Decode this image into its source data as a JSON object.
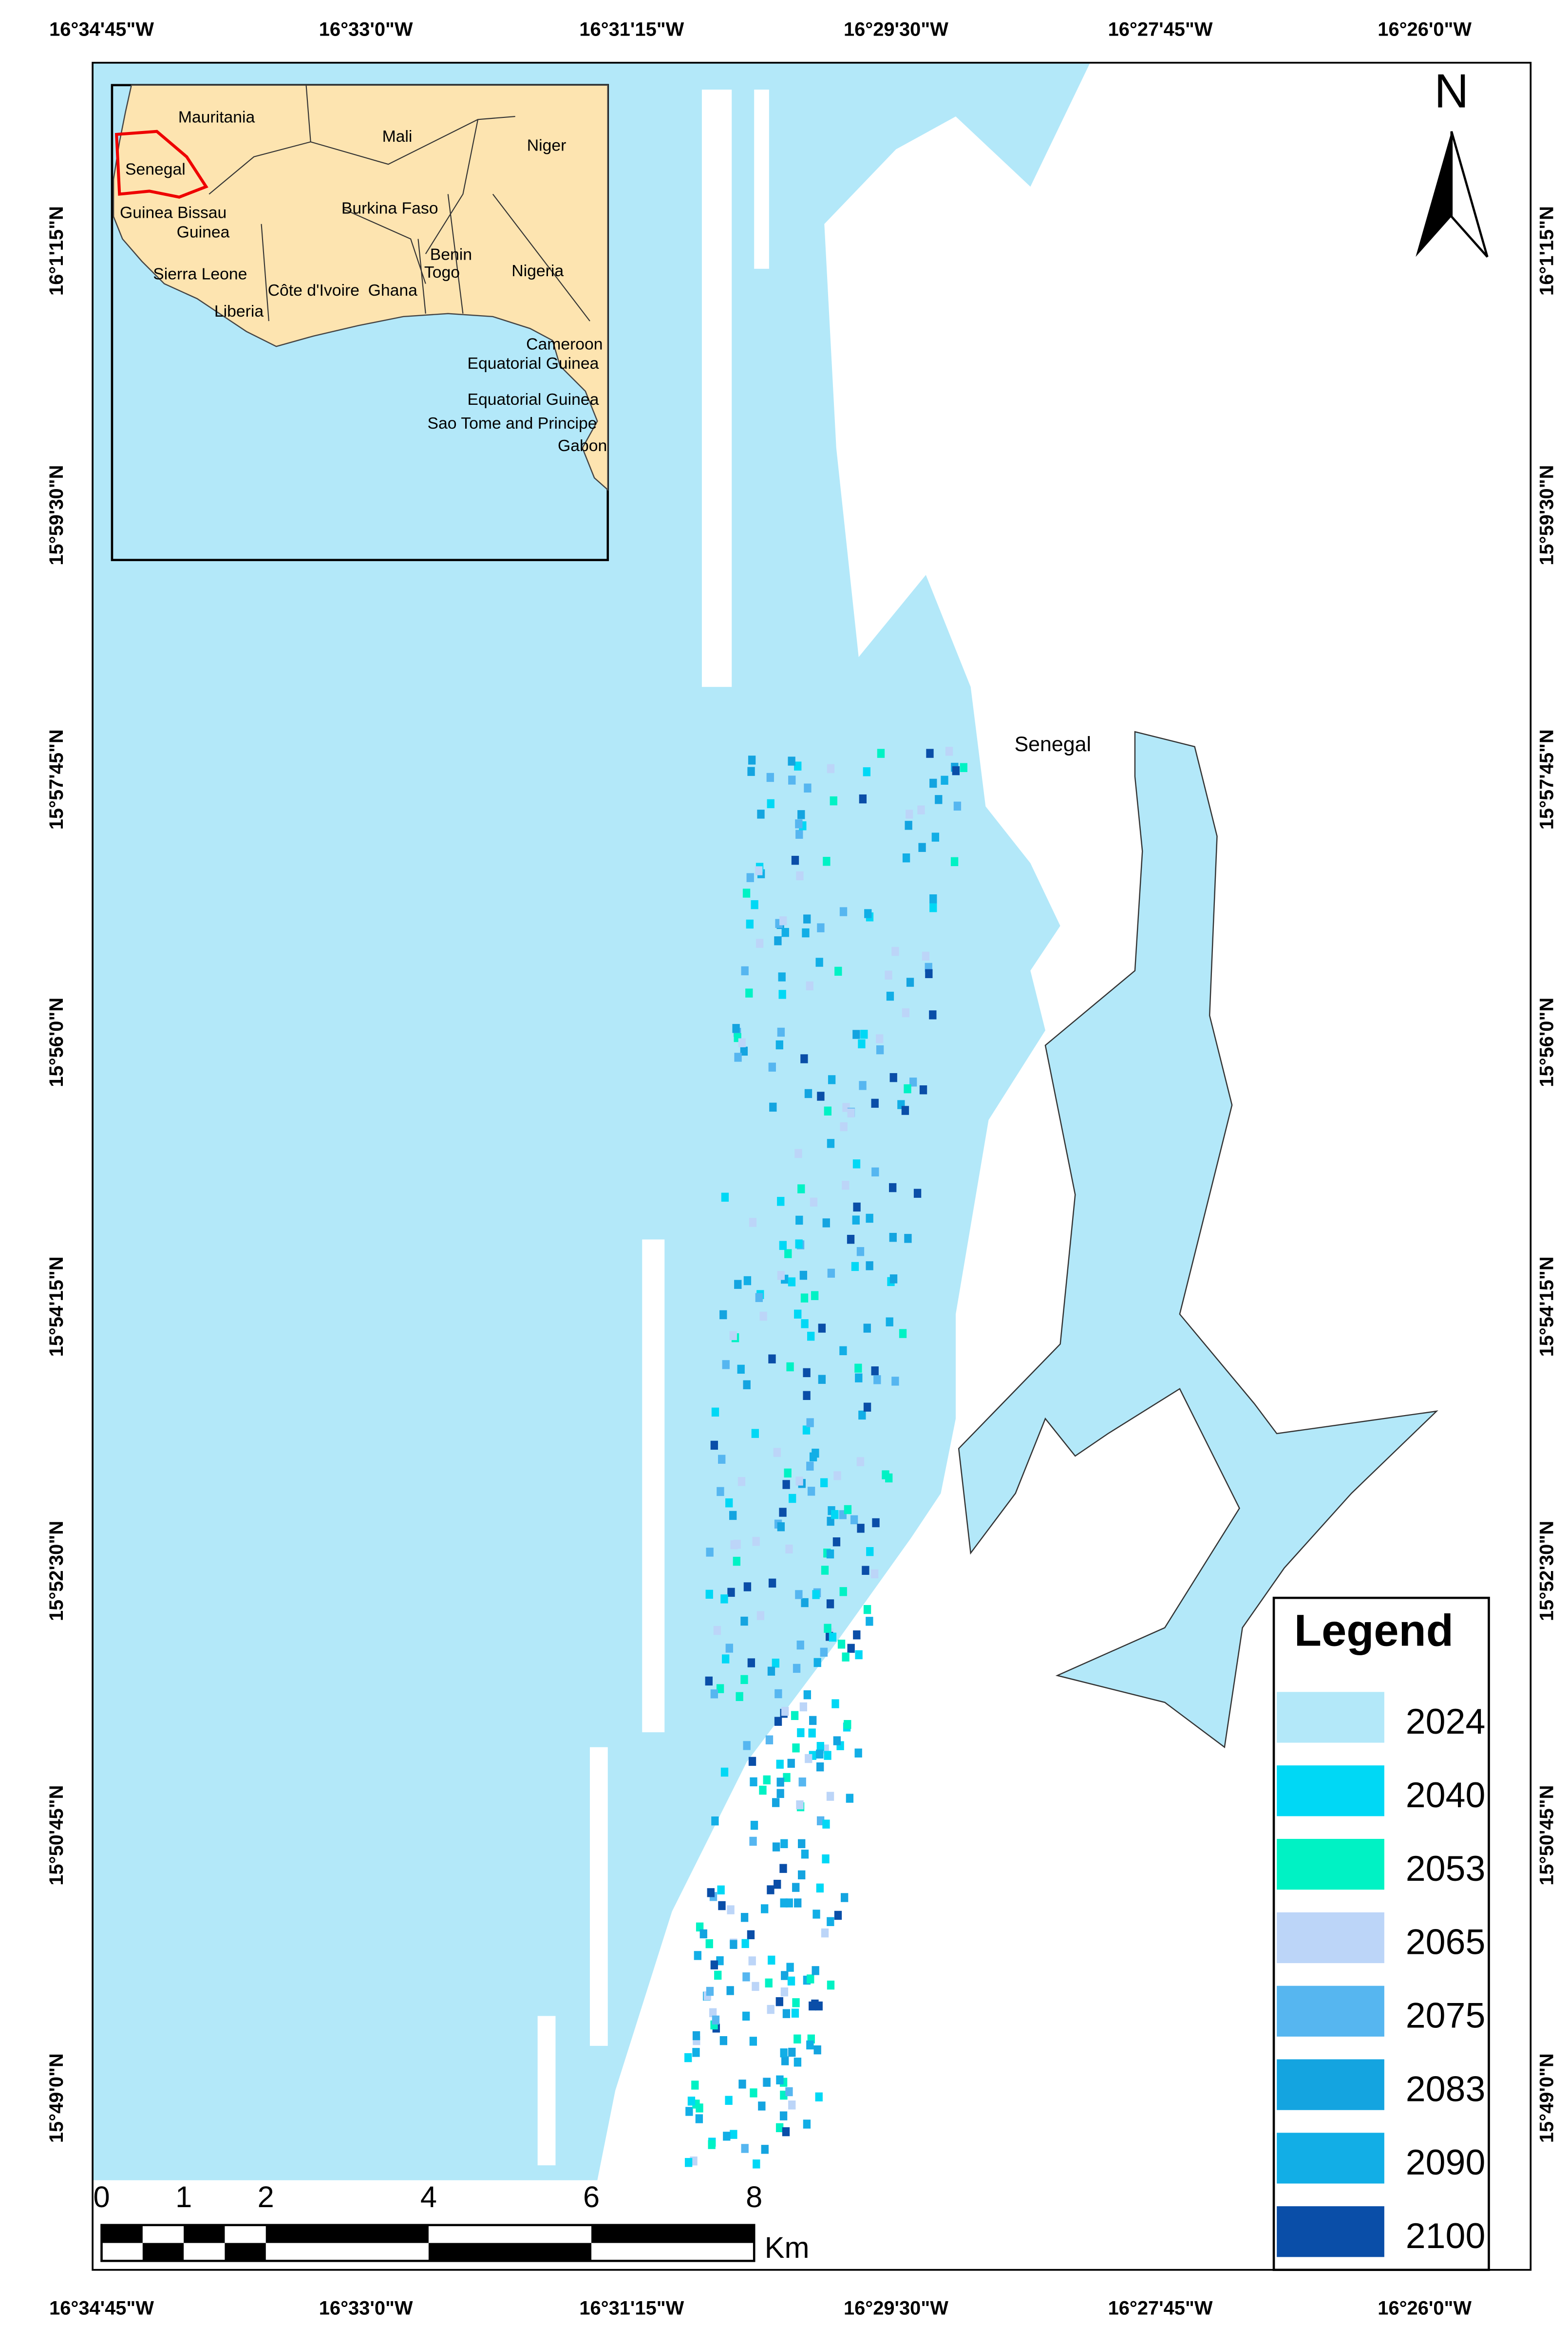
{
  "map": {
    "top_axis_labels": [
      "16°34'45\"W",
      "16°33'0\"W",
      "16°31'15\"W",
      "16°29'30\"W",
      "16°27'45\"W",
      "16°26'0\"W"
    ],
    "bottom_axis_labels": [
      "16°34'45\"W",
      "16°33'0\"W",
      "16°31'15\"W",
      "16°29'30\"W",
      "16°27'45\"W",
      "16°26'0\"W"
    ],
    "left_axis_labels": [
      "16°1'15\"N",
      "15°59'30\"N",
      "15°57'45\"N",
      "15°56'0\"N",
      "15°54'15\"N",
      "15°52'30\"N",
      "15°50'45\"N",
      "15°49'0\"N"
    ],
    "right_axis_labels": [
      "16°1'15\"N",
      "15°59'30\"N",
      "15°57'45\"N",
      "15°56'0\"N",
      "15°54'15\"N",
      "15°52'30\"N",
      "15°50'45\"N",
      "15°49'0\"N"
    ],
    "north_label": "N",
    "place_label": "Senegal",
    "inset": {
      "labels": [
        "Mauritania",
        "Mali",
        "Niger",
        "Senegal",
        "Guinea Bissau",
        "Guinea",
        "Burkina Faso",
        "Benin",
        "Togo",
        "Nigeria",
        "Sierra Leone",
        "Côte d'Ivoire",
        "Ghana",
        "Liberia",
        "Cameroon",
        "Equatorial Guinea",
        "Equatorial Guinea",
        "Sao Tome and Principe",
        "Gabon"
      ]
    },
    "scale_bar": {
      "labels": [
        "0",
        "1",
        "2",
        "4",
        "6",
        "8"
      ],
      "unit": "Km"
    },
    "legend": {
      "title": "Legend",
      "items": [
        {
          "label": "2024",
          "color": "#b3e8f9"
        },
        {
          "label": "2040",
          "color": "#00d8f5"
        },
        {
          "label": "2053",
          "color": "#00f2c4"
        },
        {
          "label": "2065",
          "color": "#bcd5f8"
        },
        {
          "label": "2075",
          "color": "#56b6f0"
        },
        {
          "label": "2083",
          "color": "#14a4e0"
        },
        {
          "label": "2090",
          "color": "#12aee6"
        },
        {
          "label": "2100",
          "color": "#0a4ea8"
        }
      ]
    }
  }
}
